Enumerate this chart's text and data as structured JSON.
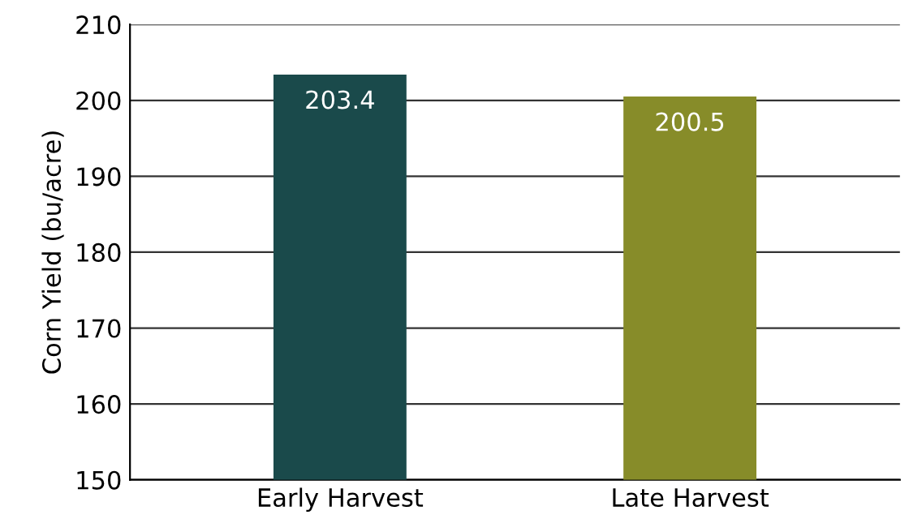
{
  "chart_data": {
    "type": "bar",
    "ylabel": "Corn Yield (bu/acre)",
    "categories": [
      "Early Harvest",
      "Late Harvest"
    ],
    "values": [
      203.4,
      200.5
    ],
    "colors": [
      "#1a4a4b",
      "#878c29"
    ],
    "ylim": [
      150,
      210
    ],
    "yticks": [
      150,
      160,
      170,
      180,
      190,
      200,
      210
    ],
    "grid": "y",
    "data_labels": true
  }
}
